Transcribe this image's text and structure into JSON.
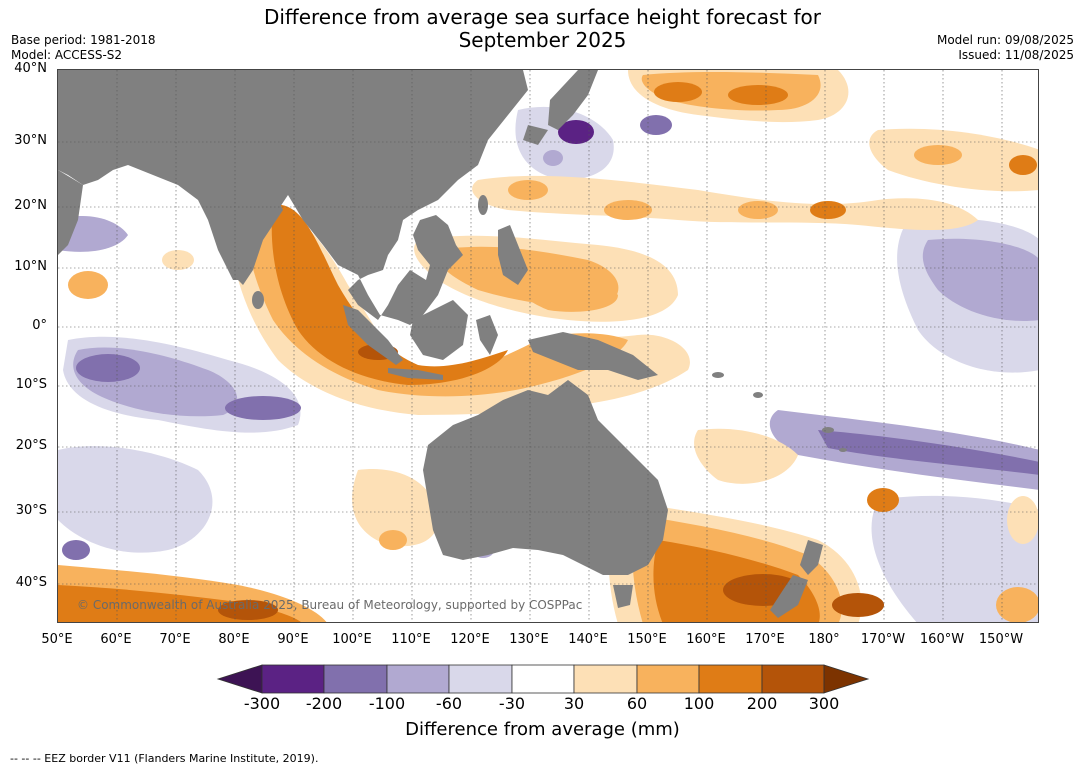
{
  "title_line1": "Difference from average sea surface height forecast for",
  "title_line2": "September 2025",
  "base_period": "Base period: 1981-2018",
  "model": "Model: ACCESS-S2",
  "model_run": "Model run: 09/08/2025",
  "issued": "Issued: 11/08/2025",
  "lat_labels": [
    "40°N",
    "30°N",
    "20°N",
    "10°N",
    "0°",
    "10°S",
    "20°S",
    "30°S",
    "40°S"
  ],
  "lon_labels": [
    "50°E",
    "60°E",
    "70°E",
    "80°E",
    "90°E",
    "100°E",
    "110°E",
    "120°E",
    "130°E",
    "140°E",
    "150°E",
    "160°E",
    "170°E",
    "180°",
    "170°W",
    "160°W",
    "150°W"
  ],
  "copyright": "© Commonwealth of Australia 2025, Bureau of Meteorology, supported by COSPPac",
  "colorbar": {
    "labels": [
      "-300",
      "-200",
      "-100",
      "-60",
      "-30",
      "30",
      "60",
      "100",
      "200",
      "300"
    ],
    "colors": [
      "#3d1354",
      "#5b2284",
      "#8170ad",
      "#b1a9d1",
      "#d9d8ea",
      "#ffffff",
      "#fde0b6",
      "#f8b25d",
      "#df7c16",
      "#b45409",
      "#7c3300"
    ],
    "title": "Difference from average (mm)"
  },
  "land_color": "#808080",
  "footnote": "--  --  -- EEZ border V11 (Flanders Marine Institute, 2019)."
}
